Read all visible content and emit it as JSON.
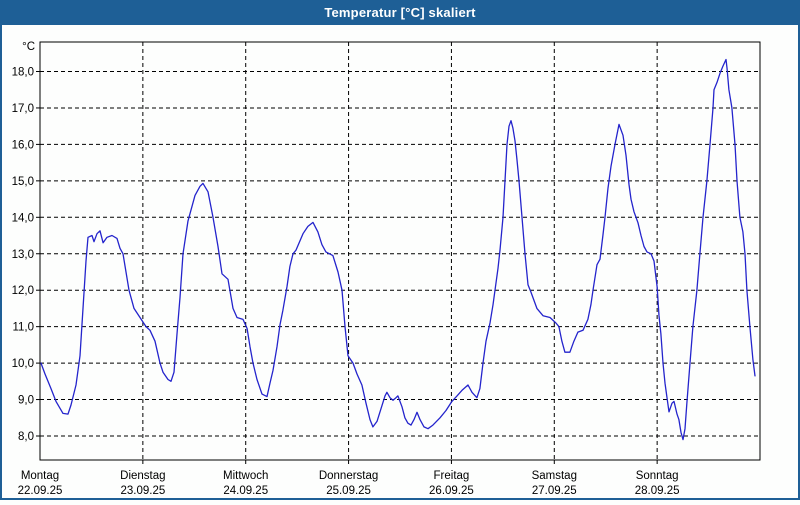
{
  "window": {
    "title": "Temperatur [°C] skaliert"
  },
  "colors": {
    "titlebar_bg": "#1E5F96",
    "window_border": "#1E5F96",
    "background": "#FDFEFD",
    "grid": "#000000",
    "axis": "#000000",
    "line": "#2424CC"
  },
  "chart_data": {
    "type": "line",
    "title": "Temperatur [°C] skaliert",
    "ylabel": "°C",
    "xlabel": "",
    "grid": "dashed",
    "legend": false,
    "ylim": [
      7.35,
      18.8
    ],
    "y_ticks": [
      8,
      9,
      10,
      11,
      12,
      13,
      14,
      15,
      16,
      17,
      18
    ],
    "y_tick_labels": [
      "8,0",
      "9,0",
      "10,0",
      "11,0",
      "12,0",
      "13,0",
      "14,0",
      "15,0",
      "16,0",
      "17,0",
      "18,0"
    ],
    "x_unit": "days since Montag 22.09.25 00:00",
    "x_range_days": [
      0,
      7
    ],
    "days": [
      {
        "name": "Montag",
        "date": "22.09.25"
      },
      {
        "name": "Dienstag",
        "date": "23.09.25"
      },
      {
        "name": "Mittwoch",
        "date": "24.09.25"
      },
      {
        "name": "Donnerstag",
        "date": "25.09.25"
      },
      {
        "name": "Freitag",
        "date": "26.09.25"
      },
      {
        "name": "Samstag",
        "date": "27.09.25"
      },
      {
        "name": "Sonntag",
        "date": "28.09.25"
      }
    ],
    "series": [
      {
        "name": "Temperatur",
        "color": "#2424CC",
        "points": [
          [
            0.01,
            10.0
          ],
          [
            0.049,
            9.7
          ],
          [
            0.107,
            9.3
          ],
          [
            0.156,
            8.95
          ],
          [
            0.224,
            8.62
          ],
          [
            0.272,
            8.6
          ],
          [
            0.301,
            8.85
          ],
          [
            0.35,
            9.4
          ],
          [
            0.389,
            10.2
          ],
          [
            0.418,
            11.5
          ],
          [
            0.447,
            12.8
          ],
          [
            0.467,
            13.45
          ],
          [
            0.506,
            13.5
          ],
          [
            0.525,
            13.33
          ],
          [
            0.554,
            13.55
          ],
          [
            0.583,
            13.63
          ],
          [
            0.613,
            13.3
          ],
          [
            0.651,
            13.45
          ],
          [
            0.7,
            13.5
          ],
          [
            0.749,
            13.42
          ],
          [
            0.778,
            13.15
          ],
          [
            0.807,
            13.0
          ],
          [
            0.865,
            12.0
          ],
          [
            0.914,
            11.5
          ],
          [
            0.972,
            11.25
          ],
          [
            1.031,
            11.0
          ],
          [
            1.069,
            10.9
          ],
          [
            1.118,
            10.6
          ],
          [
            1.167,
            10.0
          ],
          [
            1.196,
            9.75
          ],
          [
            1.244,
            9.55
          ],
          [
            1.274,
            9.5
          ],
          [
            1.303,
            9.75
          ],
          [
            1.332,
            10.8
          ],
          [
            1.361,
            11.8
          ],
          [
            1.39,
            13.0
          ],
          [
            1.439,
            13.9
          ],
          [
            1.507,
            14.6
          ],
          [
            1.556,
            14.85
          ],
          [
            1.585,
            14.93
          ],
          [
            1.633,
            14.7
          ],
          [
            1.682,
            14.0
          ],
          [
            1.731,
            13.2
          ],
          [
            1.769,
            12.45
          ],
          [
            1.828,
            12.3
          ],
          [
            1.876,
            11.5
          ],
          [
            1.915,
            11.25
          ],
          [
            1.974,
            11.2
          ],
          [
            2.013,
            10.95
          ],
          [
            2.042,
            10.45
          ],
          [
            2.071,
            10.0
          ],
          [
            2.11,
            9.55
          ],
          [
            2.158,
            9.15
          ],
          [
            2.207,
            9.08
          ],
          [
            2.236,
            9.45
          ],
          [
            2.265,
            9.8
          ],
          [
            2.304,
            10.45
          ],
          [
            2.333,
            11.05
          ],
          [
            2.362,
            11.45
          ],
          [
            2.401,
            12.1
          ],
          [
            2.43,
            12.65
          ],
          [
            2.46,
            13.0
          ],
          [
            2.489,
            13.1
          ],
          [
            2.557,
            13.55
          ],
          [
            2.605,
            13.75
          ],
          [
            2.654,
            13.86
          ],
          [
            2.702,
            13.6
          ],
          [
            2.741,
            13.25
          ],
          [
            2.78,
            13.05
          ],
          [
            2.848,
            12.95
          ],
          [
            2.897,
            12.5
          ],
          [
            2.936,
            12.0
          ],
          [
            2.965,
            11.0
          ],
          [
            2.994,
            10.2
          ],
          [
            3.043,
            10.0
          ],
          [
            3.082,
            9.7
          ],
          [
            3.13,
            9.4
          ],
          [
            3.169,
            8.9
          ],
          [
            3.208,
            8.45
          ],
          [
            3.237,
            8.25
          ],
          [
            3.276,
            8.4
          ],
          [
            3.315,
            8.75
          ],
          [
            3.354,
            9.1
          ],
          [
            3.373,
            9.2
          ],
          [
            3.403,
            9.05
          ],
          [
            3.432,
            8.98
          ],
          [
            3.461,
            9.05
          ],
          [
            3.48,
            9.1
          ],
          [
            3.519,
            8.8
          ],
          [
            3.548,
            8.5
          ],
          [
            3.577,
            8.35
          ],
          [
            3.607,
            8.3
          ],
          [
            3.636,
            8.45
          ],
          [
            3.665,
            8.65
          ],
          [
            3.694,
            8.45
          ],
          [
            3.733,
            8.25
          ],
          [
            3.772,
            8.2
          ],
          [
            3.82,
            8.3
          ],
          [
            3.889,
            8.5
          ],
          [
            3.947,
            8.7
          ],
          [
            4.005,
            8.95
          ],
          [
            4.054,
            9.1
          ],
          [
            4.102,
            9.25
          ],
          [
            4.161,
            9.4
          ],
          [
            4.2,
            9.2
          ],
          [
            4.248,
            9.05
          ],
          [
            4.277,
            9.3
          ],
          [
            4.307,
            10.0
          ],
          [
            4.336,
            10.6
          ],
          [
            4.375,
            11.1
          ],
          [
            4.404,
            11.6
          ],
          [
            4.424,
            12.0
          ],
          [
            4.453,
            12.6
          ],
          [
            4.472,
            13.1
          ],
          [
            4.501,
            14.0
          ],
          [
            4.521,
            15.0
          ],
          [
            4.54,
            16.0
          ],
          [
            4.56,
            16.5
          ],
          [
            4.579,
            16.65
          ],
          [
            4.598,
            16.45
          ],
          [
            4.618,
            16.1
          ],
          [
            4.637,
            15.6
          ],
          [
            4.657,
            15.0
          ],
          [
            4.686,
            14.0
          ],
          [
            4.715,
            13.0
          ],
          [
            4.744,
            12.15
          ],
          [
            4.773,
            11.95
          ],
          [
            4.831,
            11.5
          ],
          [
            4.89,
            11.3
          ],
          [
            4.958,
            11.25
          ],
          [
            5.016,
            11.1
          ],
          [
            5.045,
            11.0
          ],
          [
            5.074,
            10.6
          ],
          [
            5.103,
            10.3
          ],
          [
            5.152,
            10.3
          ],
          [
            5.191,
            10.6
          ],
          [
            5.23,
            10.85
          ],
          [
            5.279,
            10.9
          ],
          [
            5.327,
            11.2
          ],
          [
            5.356,
            11.6
          ],
          [
            5.376,
            12.0
          ],
          [
            5.415,
            12.7
          ],
          [
            5.444,
            12.85
          ],
          [
            5.473,
            13.5
          ],
          [
            5.493,
            14.0
          ],
          [
            5.522,
            14.8
          ],
          [
            5.551,
            15.4
          ],
          [
            5.59,
            16.0
          ],
          [
            5.629,
            16.55
          ],
          [
            5.668,
            16.25
          ],
          [
            5.697,
            15.7
          ],
          [
            5.726,
            14.9
          ],
          [
            5.746,
            14.5
          ],
          [
            5.775,
            14.15
          ],
          [
            5.814,
            13.85
          ],
          [
            5.843,
            13.5
          ],
          [
            5.872,
            13.2
          ],
          [
            5.901,
            13.05
          ],
          [
            5.94,
            13.0
          ],
          [
            5.969,
            12.8
          ],
          [
            6.0,
            12.1
          ],
          [
            6.018,
            11.3
          ],
          [
            6.037,
            10.8
          ],
          [
            6.057,
            10.0
          ],
          [
            6.076,
            9.45
          ],
          [
            6.096,
            9.05
          ],
          [
            6.115,
            8.66
          ],
          [
            6.144,
            8.9
          ],
          [
            6.164,
            8.95
          ],
          [
            6.193,
            8.6
          ],
          [
            6.212,
            8.45
          ],
          [
            6.232,
            8.1
          ],
          [
            6.251,
            7.9
          ],
          [
            6.271,
            8.2
          ],
          [
            6.29,
            8.95
          ],
          [
            6.319,
            10.0
          ],
          [
            6.348,
            11.0
          ],
          [
            6.387,
            12.0
          ],
          [
            6.416,
            13.0
          ],
          [
            6.446,
            14.0
          ],
          [
            6.484,
            15.0
          ],
          [
            6.514,
            16.0
          ],
          [
            6.543,
            17.0
          ],
          [
            6.553,
            17.5
          ],
          [
            6.582,
            17.7
          ],
          [
            6.611,
            17.95
          ],
          [
            6.64,
            18.15
          ],
          [
            6.669,
            18.33
          ],
          [
            6.679,
            18.1
          ],
          [
            6.698,
            17.5
          ],
          [
            6.727,
            17.0
          ],
          [
            6.757,
            16.0
          ],
          [
            6.776,
            15.0
          ],
          [
            6.805,
            14.0
          ],
          [
            6.834,
            13.6
          ],
          [
            6.854,
            13.0
          ],
          [
            6.873,
            12.0
          ],
          [
            6.902,
            11.0
          ],
          [
            6.931,
            10.1
          ],
          [
            6.951,
            9.65
          ]
        ]
      }
    ]
  }
}
